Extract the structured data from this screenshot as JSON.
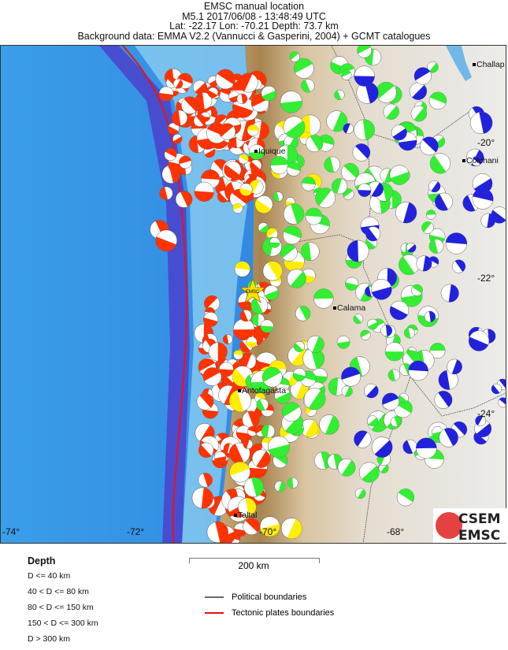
{
  "header": {
    "line1": "EMSC manual location",
    "line2": "M5.1  2017/06/08 - 13:48:49 UTC",
    "line3": "Lat: -22.17    Lon: -70.21      Depth:  73.7 km",
    "line4": "Background data: EMMA V2.2 (Vannucci & Gasperini, 2004) + GCMT catalogues"
  },
  "map": {
    "lon_labels": [
      "-74°",
      "-72°",
      "-70°",
      "-68°"
    ],
    "lat_labels": [
      "-20°",
      "-22°",
      "-24°"
    ],
    "cities": [
      "Iquique",
      "Calama",
      "Antofagasta",
      "Taltal",
      "Challap",
      "Colchani"
    ],
    "epicenter_label": "EMSC",
    "epicenter": {
      "lat": -22.17,
      "lon": -70.21
    },
    "depth_colors": {
      "d40": "#ff3300",
      "d80": "#ffee00",
      "d150": "#33ee33",
      "d300": "#2222dd"
    },
    "plate_boundary_color": "#ee1111"
  },
  "legend": {
    "title": "Depth",
    "items": [
      "D <= 40 km",
      "40 < D <= 80 km",
      "80 < D <= 150 km",
      "150 < D <= 300 km",
      "D > 300 km"
    ],
    "scale": "200 km",
    "political": "Political boundaries",
    "tectonic": "Tectonic plates boundaries"
  },
  "logo": {
    "top": "CSEM",
    "bottom": "EMSC"
  }
}
